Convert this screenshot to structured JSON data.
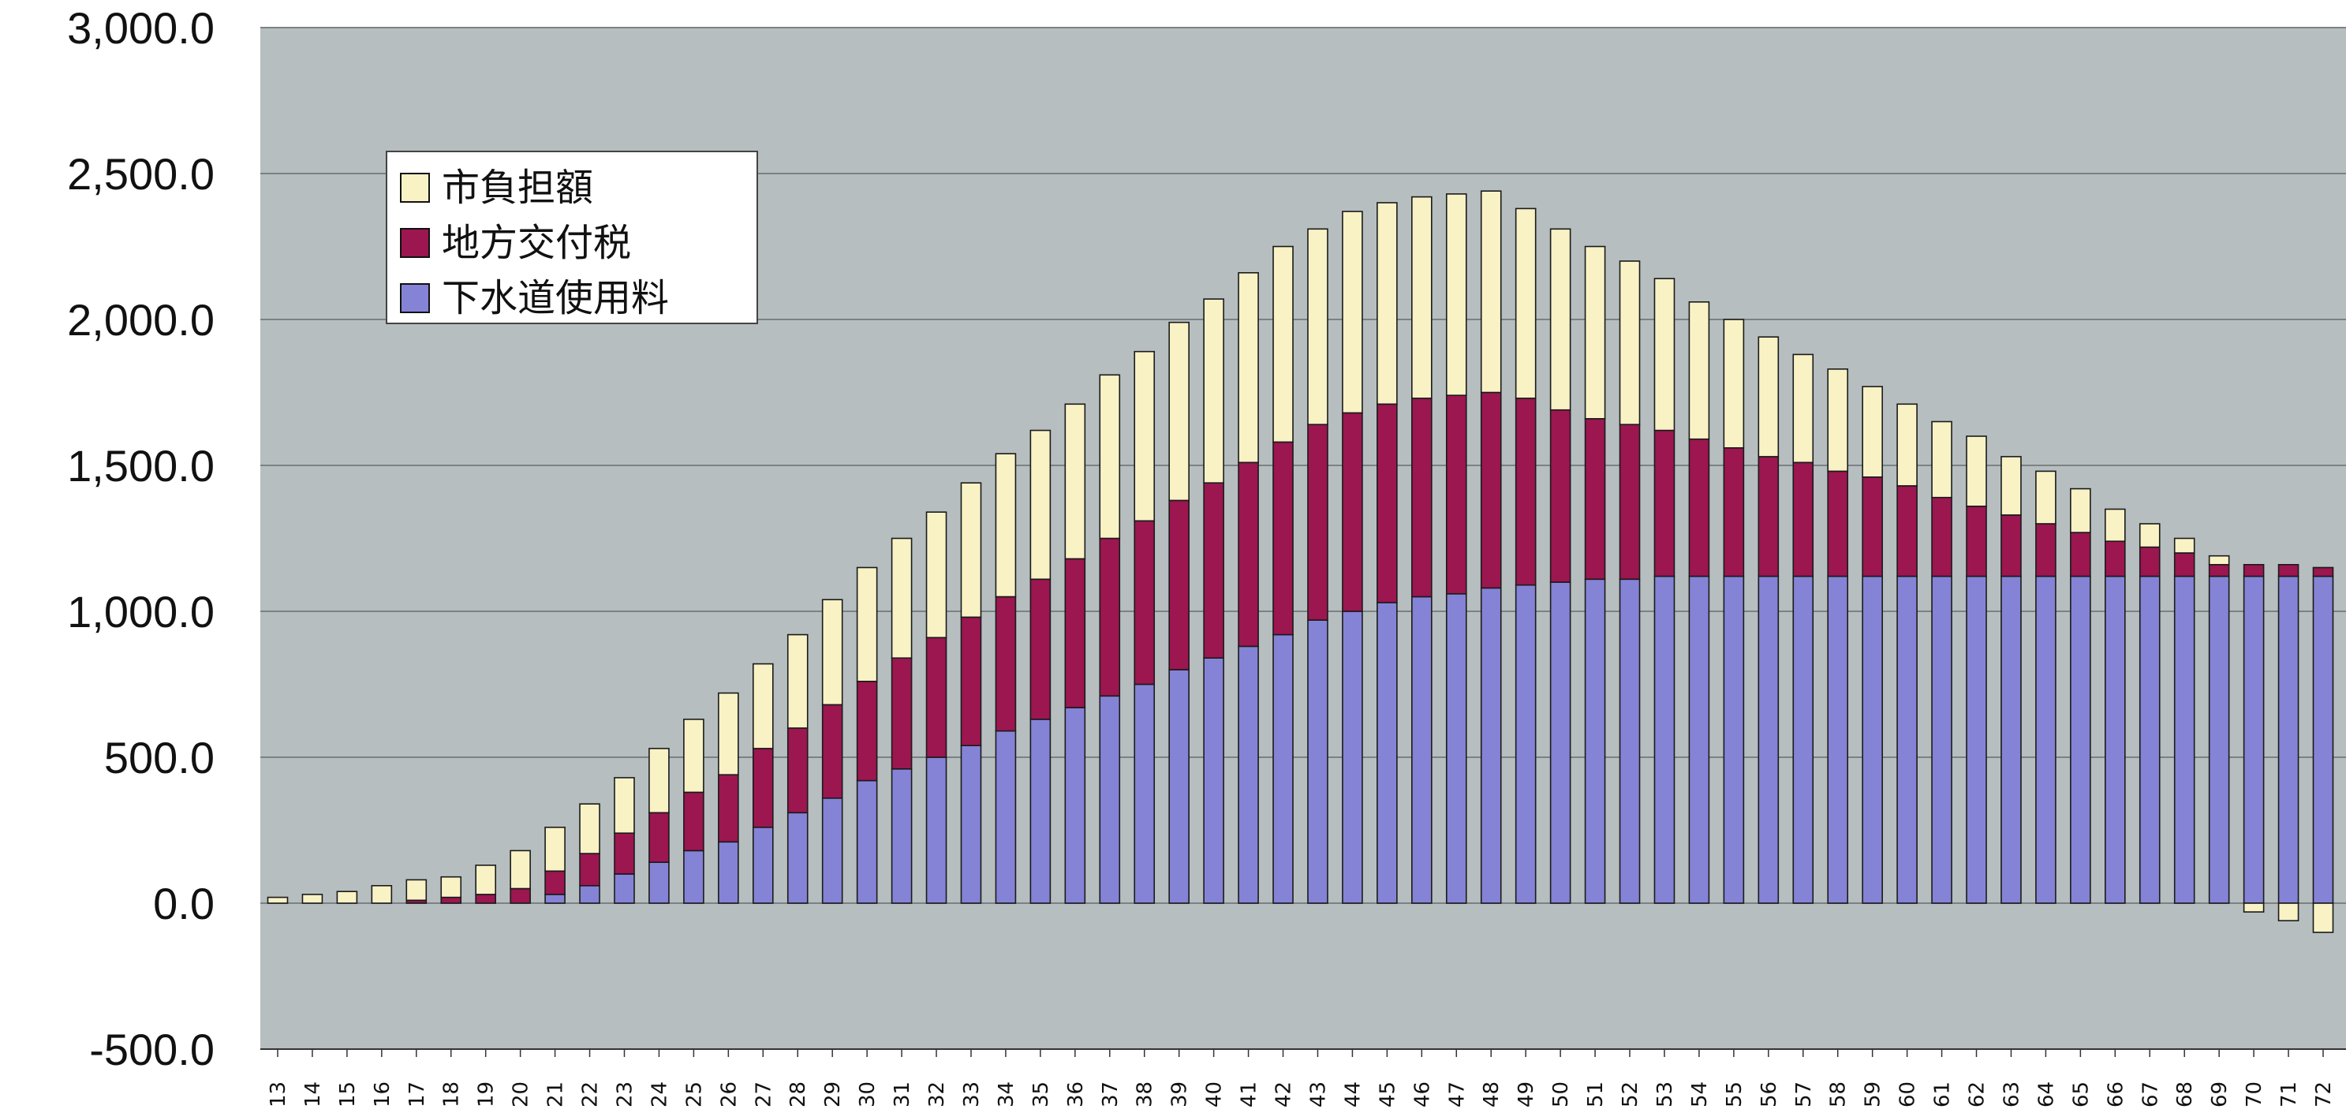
{
  "chart_data": {
    "type": "bar",
    "stacked": true,
    "title": "",
    "xlabel": "",
    "ylabel": "",
    "ylim": [
      -500,
      3000
    ],
    "yticks": [
      "3,000.0",
      "2,500.0",
      "2,000.0",
      "1,500.0",
      "1,000.0",
      "500.0",
      "0.0",
      "-500.0"
    ],
    "negative_tick_color": "#e0001b",
    "grid": true,
    "legend_position": "top-left",
    "categories": [
      "13",
      "14",
      "15",
      "16",
      "17",
      "18",
      "19",
      "20",
      "21",
      "22",
      "23",
      "24",
      "25",
      "26",
      "27",
      "28",
      "29",
      "30",
      "31",
      "32",
      "33",
      "34",
      "35",
      "36",
      "37",
      "38",
      "39",
      "40",
      "41",
      "42",
      "43",
      "44",
      "45",
      "46",
      "47",
      "48",
      "49",
      "50",
      "51",
      "52",
      "53",
      "54",
      "55",
      "56",
      "57",
      "58",
      "59",
      "60",
      "61",
      "62",
      "63",
      "64",
      "65",
      "66",
      "67",
      "68",
      "69",
      "70",
      "71",
      "72"
    ],
    "series": [
      {
        "name": "下水道使用料",
        "color": "#8583d6",
        "values": [
          0,
          0,
          0,
          0,
          0,
          0,
          0,
          0,
          30,
          60,
          100,
          140,
          180,
          210,
          260,
          310,
          360,
          420,
          460,
          500,
          540,
          590,
          630,
          670,
          710,
          750,
          800,
          840,
          880,
          920,
          970,
          1000,
          1030,
          1050,
          1060,
          1080,
          1090,
          1100,
          1110,
          1110,
          1120,
          1120,
          1120,
          1120,
          1120,
          1120,
          1120,
          1120,
          1120,
          1120,
          1120,
          1120,
          1120,
          1120,
          1120,
          1120,
          1120,
          1120,
          1120,
          1120
        ]
      },
      {
        "name": "地方交付税",
        "color": "#9c1650",
        "values": [
          0,
          0,
          0,
          0,
          10,
          20,
          30,
          50,
          80,
          110,
          140,
          170,
          200,
          230,
          270,
          290,
          320,
          340,
          380,
          410,
          440,
          460,
          480,
          510,
          540,
          560,
          580,
          600,
          630,
          660,
          670,
          680,
          680,
          680,
          680,
          670,
          640,
          590,
          550,
          530,
          500,
          470,
          440,
          410,
          390,
          360,
          340,
          310,
          270,
          240,
          210,
          180,
          150,
          120,
          100,
          80,
          40,
          40,
          40,
          30
        ]
      },
      {
        "name": "市負担額",
        "color": "#f8f2c5",
        "values": [
          20,
          30,
          40,
          60,
          70,
          70,
          100,
          130,
          150,
          170,
          190,
          220,
          250,
          280,
          290,
          320,
          360,
          390,
          410,
          430,
          460,
          490,
          510,
          530,
          560,
          580,
          610,
          630,
          650,
          670,
          670,
          690,
          690,
          690,
          690,
          690,
          650,
          620,
          590,
          560,
          520,
          470,
          440,
          410,
          370,
          350,
          310,
          280,
          260,
          240,
          200,
          180,
          150,
          110,
          80,
          50,
          30,
          -30,
          -60,
          -100
        ]
      }
    ]
  }
}
